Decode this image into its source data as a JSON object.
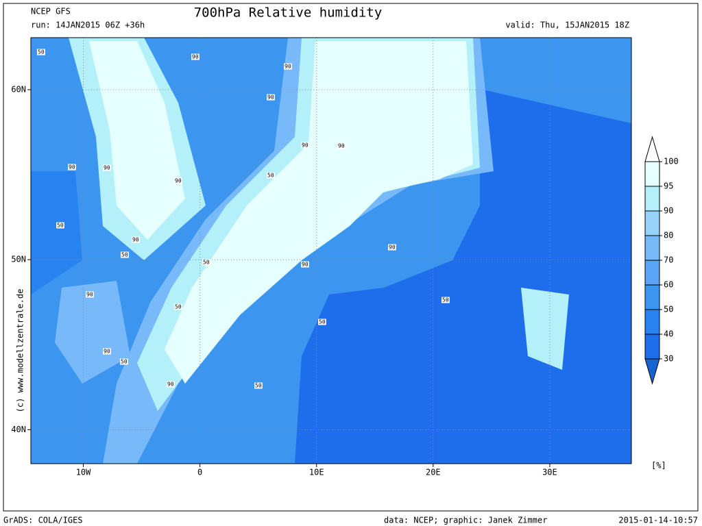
{
  "header": {
    "model": "NCEP GFS",
    "run": "run: 14JAN2015 06Z +36h",
    "title": "700hPa Relative humidity",
    "valid": "valid: Thu, 15JAN2015 18Z"
  },
  "map": {
    "xlim": [
      -14.5,
      37
    ],
    "ylim": [
      38,
      63.06
    ],
    "xticks": [
      {
        "value": -10,
        "label": "10W"
      },
      0,
      {
        "value": 10,
        "label": "10E"
      },
      {
        "value": 20,
        "label": "20E"
      },
      {
        "value": 30,
        "label": "30E"
      }
    ],
    "yticks": [
      {
        "value": 40,
        "label": "40N"
      },
      {
        "value": 50,
        "label": "50N"
      },
      {
        "value": 60,
        "label": "60N"
      }
    ],
    "grid": true,
    "contour_labels": [
      "50",
      "90",
      "90",
      "90",
      "90",
      "90",
      "50",
      "90",
      "90",
      "50",
      "50",
      "90",
      "90",
      "50",
      "90",
      "90",
      "50",
      "50",
      "90",
      "50",
      "90",
      "50",
      "90",
      "50"
    ]
  },
  "colorbar": {
    "levels": [
      100,
      95,
      90,
      80,
      70,
      60,
      50,
      40,
      30
    ],
    "colors": [
      "#e6ffff",
      "#b4f0fa",
      "#96d2fa",
      "#78b9fa",
      "#5aa5f5",
      "#3c96f0",
      "#2882f0",
      "#1e6eeb",
      "#1464d2"
    ],
    "unit": "[%]"
  },
  "side_text": "(c) www.modellzentrale.de",
  "footer": {
    "left": "GrADS: COLA/IGES",
    "center": "data: NCEP; graphic: Janek Zimmer",
    "right": "2015-01-14-10:57"
  }
}
